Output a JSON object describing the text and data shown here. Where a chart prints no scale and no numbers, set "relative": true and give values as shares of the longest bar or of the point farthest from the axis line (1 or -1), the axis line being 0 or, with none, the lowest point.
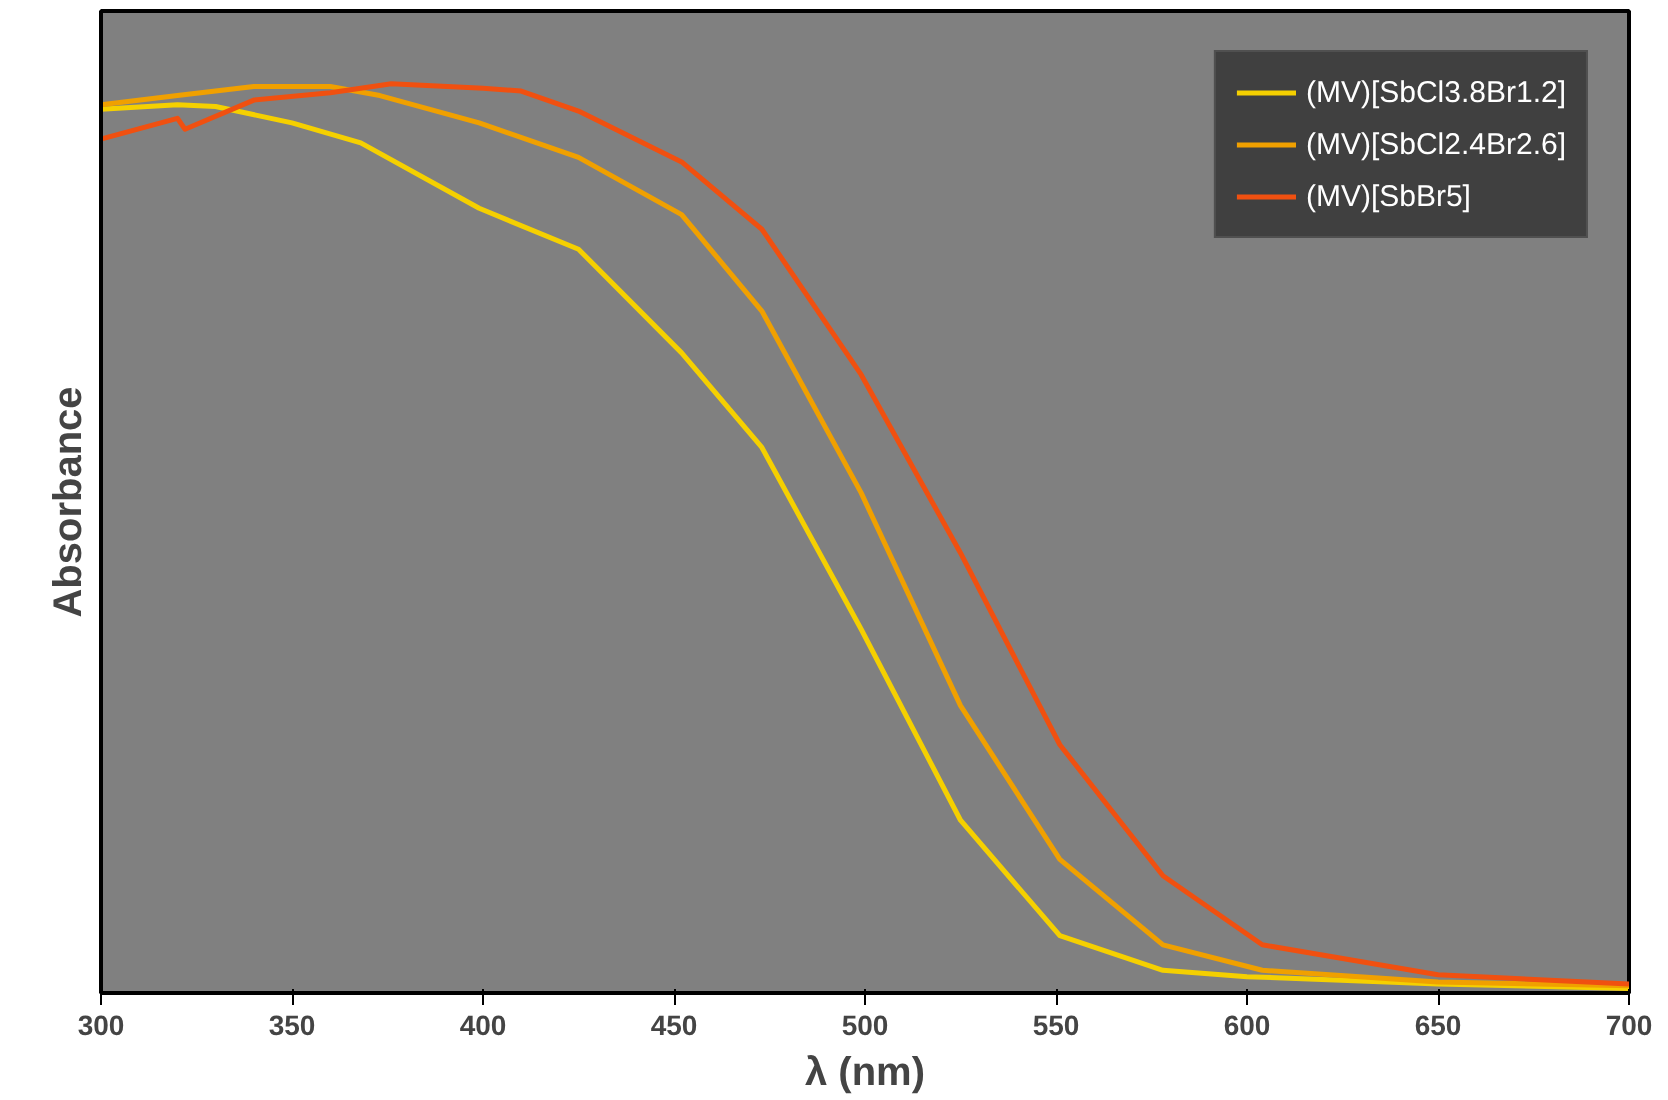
{
  "chart_data": {
    "type": "line",
    "xlabel": "λ (nm)",
    "ylabel": "Absorbance",
    "relative": true,
    "xlim": [
      300,
      700
    ],
    "xticks": [
      300,
      350,
      400,
      450,
      500,
      550,
      600,
      650,
      700
    ],
    "grid": false,
    "legend": "top right",
    "marker": "none",
    "line_style": "solid",
    "series": [
      {
        "name": "(MV)[SbCl3.8Br1.2]",
        "color": "#f5d000",
        "x": [
          300,
          320,
          330,
          350,
          368,
          399,
          425,
          452,
          473,
          499,
          525,
          551,
          578,
          600,
          650,
          700
        ],
        "values": [
          0.972,
          0.977,
          0.975,
          0.957,
          0.935,
          0.863,
          0.818,
          0.704,
          0.6,
          0.4,
          0.19,
          0.063,
          0.025,
          0.018,
          0.01,
          0.005
        ]
      },
      {
        "name": "(MV)[SbCl2.4Br2.6]",
        "color": "#f0a000",
        "x": [
          300,
          320,
          340,
          360,
          373,
          399,
          425,
          452,
          473,
          499,
          525,
          551,
          578,
          604,
          650,
          700
        ],
        "values": [
          0.977,
          0.987,
          0.997,
          0.997,
          0.987,
          0.957,
          0.919,
          0.856,
          0.75,
          0.55,
          0.316,
          0.147,
          0.053,
          0.025,
          0.012,
          0.008
        ]
      },
      {
        "name": "(MV)[SbBr5]",
        "color": "#f05010",
        "x": [
          300,
          320,
          322,
          340,
          360,
          376,
          400,
          410,
          425,
          452,
          473,
          499,
          525,
          551,
          578,
          604,
          650,
          700
        ],
        "values": [
          0.939,
          0.962,
          0.95,
          0.982,
          0.99,
          1.0,
          0.995,
          0.992,
          0.97,
          0.914,
          0.84,
          0.68,
          0.484,
          0.273,
          0.129,
          0.053,
          0.02,
          0.01
        ]
      }
    ]
  }
}
